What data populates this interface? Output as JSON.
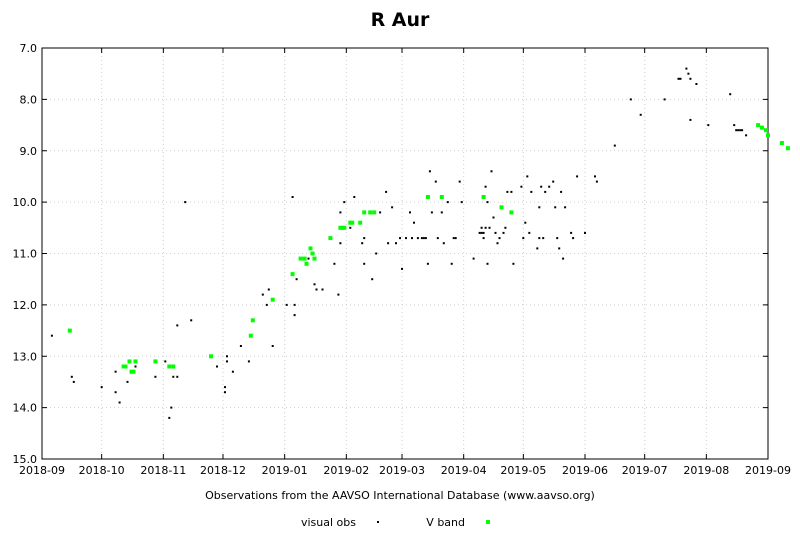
{
  "chart_data": {
    "type": "scatter",
    "title": "R Aur",
    "xlabel": "Observations from the AAVSO International Database (www.aavso.org)",
    "ylabel": "",
    "x_ticks": [
      "2018-09",
      "2018-10",
      "2018-11",
      "2018-12",
      "2019-01",
      "2019-02",
      "2019-03",
      "2019-04",
      "2019-05",
      "2019-06",
      "2019-07",
      "2019-08",
      "2019-09"
    ],
    "y_ticks": [
      "7.0",
      "8.0",
      "9.0",
      "10.0",
      "11.0",
      "12.0",
      "13.0",
      "14.0",
      "15.0"
    ],
    "ylim": [
      15.0,
      7.0
    ],
    "y_reversed": true,
    "grid": true,
    "legend_position": "bottom",
    "series": [
      {
        "name": "visual obs",
        "color": "#000000",
        "points": [
          [
            "2018-09-06",
            12.6
          ],
          [
            "2018-09-16",
            13.4
          ],
          [
            "2018-09-17",
            13.5
          ],
          [
            "2018-10-01",
            13.6
          ],
          [
            "2018-10-08",
            13.3
          ],
          [
            "2018-10-08",
            13.7
          ],
          [
            "2018-10-10",
            13.9
          ],
          [
            "2018-10-13",
            13.2
          ],
          [
            "2018-10-14",
            13.5
          ],
          [
            "2018-10-16",
            13.3
          ],
          [
            "2018-10-18",
            13.2
          ],
          [
            "2018-10-28",
            13.4
          ],
          [
            "2018-11-02",
            13.1
          ],
          [
            "2018-11-04",
            14.2
          ],
          [
            "2018-11-05",
            14.0
          ],
          [
            "2018-11-06",
            13.4
          ],
          [
            "2018-11-08",
            12.4
          ],
          [
            "2018-11-08",
            13.4
          ],
          [
            "2018-11-12",
            10.0
          ],
          [
            "2018-11-15",
            12.3
          ],
          [
            "2018-11-28",
            13.2
          ],
          [
            "2018-12-02",
            13.6
          ],
          [
            "2018-12-02",
            13.7
          ],
          [
            "2018-12-03",
            13.1
          ],
          [
            "2018-12-03",
            13.0
          ],
          [
            "2018-12-06",
            13.3
          ],
          [
            "2018-12-10",
            12.8
          ],
          [
            "2018-12-14",
            13.1
          ],
          [
            "2018-12-21",
            11.8
          ],
          [
            "2018-12-23",
            12.0
          ],
          [
            "2018-12-24",
            11.7
          ],
          [
            "2018-12-26",
            12.8
          ],
          [
            "2019-01-02",
            12.0
          ],
          [
            "2019-01-05",
            9.9
          ],
          [
            "2019-01-06",
            12.0
          ],
          [
            "2019-01-06",
            12.2
          ],
          [
            "2019-01-07",
            11.5
          ],
          [
            "2019-01-13",
            11.1
          ],
          [
            "2019-01-16",
            11.6
          ],
          [
            "2019-01-17",
            11.7
          ],
          [
            "2019-01-20",
            11.7
          ],
          [
            "2019-01-26",
            11.2
          ],
          [
            "2019-01-28",
            11.8
          ],
          [
            "2019-01-29",
            10.2
          ],
          [
            "2019-01-29",
            10.8
          ],
          [
            "2019-01-31",
            10.0
          ],
          [
            "2019-02-03",
            10.5
          ],
          [
            "2019-02-05",
            9.9
          ],
          [
            "2019-02-09",
            10.8
          ],
          [
            "2019-02-10",
            10.7
          ],
          [
            "2019-02-10",
            11.2
          ],
          [
            "2019-02-14",
            11.5
          ],
          [
            "2019-02-16",
            11.0
          ],
          [
            "2019-02-18",
            10.2
          ],
          [
            "2019-02-21",
            9.8
          ],
          [
            "2019-02-22",
            10.8
          ],
          [
            "2019-02-24",
            10.1
          ],
          [
            "2019-02-26",
            10.8
          ],
          [
            "2019-02-28",
            10.7
          ],
          [
            "2019-03-01",
            11.3
          ],
          [
            "2019-03-03",
            10.7
          ],
          [
            "2019-03-05",
            10.2
          ],
          [
            "2019-03-06",
            10.7
          ],
          [
            "2019-03-07",
            10.4
          ],
          [
            "2019-03-09",
            10.7
          ],
          [
            "2019-03-11",
            10.7
          ],
          [
            "2019-03-12",
            10.7
          ],
          [
            "2019-03-13",
            10.7
          ],
          [
            "2019-03-14",
            11.2
          ],
          [
            "2019-03-15",
            9.4
          ],
          [
            "2019-03-16",
            10.2
          ],
          [
            "2019-03-18",
            9.6
          ],
          [
            "2019-03-19",
            10.7
          ],
          [
            "2019-03-21",
            10.2
          ],
          [
            "2019-03-22",
            10.8
          ],
          [
            "2019-03-24",
            10.0
          ],
          [
            "2019-03-26",
            11.2
          ],
          [
            "2019-03-27",
            10.7
          ],
          [
            "2019-03-28",
            10.7
          ],
          [
            "2019-03-30",
            9.6
          ],
          [
            "2019-03-31",
            10.0
          ],
          [
            "2019-04-06",
            11.1
          ],
          [
            "2019-04-09",
            10.6
          ],
          [
            "2019-04-10",
            10.5
          ],
          [
            "2019-04-10",
            10.6
          ],
          [
            "2019-04-11",
            10.6
          ],
          [
            "2019-04-11",
            10.7
          ],
          [
            "2019-04-12",
            10.5
          ],
          [
            "2019-04-12",
            9.7
          ],
          [
            "2019-04-13",
            11.2
          ],
          [
            "2019-04-13",
            10.0
          ],
          [
            "2019-04-14",
            10.5
          ],
          [
            "2019-04-15",
            9.4
          ],
          [
            "2019-04-16",
            10.3
          ],
          [
            "2019-04-17",
            10.6
          ],
          [
            "2019-04-18",
            10.8
          ],
          [
            "2019-04-19",
            10.7
          ],
          [
            "2019-04-21",
            10.6
          ],
          [
            "2019-04-22",
            10.5
          ],
          [
            "2019-04-23",
            9.8
          ],
          [
            "2019-04-25",
            9.8
          ],
          [
            "2019-04-26",
            11.2
          ],
          [
            "2019-04-30",
            9.7
          ],
          [
            "2019-05-01",
            10.7
          ],
          [
            "2019-05-02",
            10.4
          ],
          [
            "2019-05-03",
            9.5
          ],
          [
            "2019-05-04",
            10.6
          ],
          [
            "2019-05-05",
            9.8
          ],
          [
            "2019-05-08",
            10.9
          ],
          [
            "2019-05-09",
            10.1
          ],
          [
            "2019-05-09",
            10.7
          ],
          [
            "2019-05-10",
            9.7
          ],
          [
            "2019-05-11",
            10.7
          ],
          [
            "2019-05-12",
            9.8
          ],
          [
            "2019-05-14",
            9.7
          ],
          [
            "2019-05-16",
            9.6
          ],
          [
            "2019-05-17",
            10.1
          ],
          [
            "2019-05-18",
            10.7
          ],
          [
            "2019-05-19",
            10.9
          ],
          [
            "2019-05-20",
            9.8
          ],
          [
            "2019-05-21",
            11.1
          ],
          [
            "2019-05-22",
            10.1
          ],
          [
            "2019-05-25",
            10.6
          ],
          [
            "2019-05-26",
            10.7
          ],
          [
            "2019-05-28",
            9.5
          ],
          [
            "2019-06-01",
            10.6
          ],
          [
            "2019-06-01",
            10.6
          ],
          [
            "2019-06-06",
            9.5
          ],
          [
            "2019-06-07",
            9.6
          ],
          [
            "2019-06-16",
            8.9
          ],
          [
            "2019-06-24",
            8.0
          ],
          [
            "2019-06-29",
            8.3
          ],
          [
            "2019-07-11",
            8.0
          ],
          [
            "2019-07-18",
            7.6
          ],
          [
            "2019-07-19",
            7.6
          ],
          [
            "2019-07-22",
            7.4
          ],
          [
            "2019-07-23",
            7.5
          ],
          [
            "2019-07-24",
            7.6
          ],
          [
            "2019-07-24",
            8.4
          ],
          [
            "2019-07-27",
            7.7
          ],
          [
            "2019-08-02",
            8.5
          ],
          [
            "2019-08-13",
            7.9
          ],
          [
            "2019-08-15",
            8.5
          ],
          [
            "2019-08-16",
            8.6
          ],
          [
            "2019-08-17",
            8.6
          ],
          [
            "2019-08-18",
            8.6
          ],
          [
            "2019-08-19",
            8.6
          ],
          [
            "2019-08-21",
            8.7
          ]
        ]
      },
      {
        "name": "V band",
        "color": "#00ff00",
        "points": [
          [
            "2018-09-15",
            12.5
          ],
          [
            "2018-10-12",
            13.2
          ],
          [
            "2018-10-13",
            13.2
          ],
          [
            "2018-10-15",
            13.1
          ],
          [
            "2018-10-16",
            13.3
          ],
          [
            "2018-10-17",
            13.3
          ],
          [
            "2018-10-18",
            13.1
          ],
          [
            "2018-10-28",
            13.1
          ],
          [
            "2018-11-04",
            13.2
          ],
          [
            "2018-11-06",
            13.2
          ],
          [
            "2018-11-25",
            13.0
          ],
          [
            "2018-12-15",
            12.6
          ],
          [
            "2018-12-16",
            12.3
          ],
          [
            "2018-12-26",
            11.9
          ],
          [
            "2019-01-05",
            11.4
          ],
          [
            "2019-01-09",
            11.1
          ],
          [
            "2019-01-11",
            11.1
          ],
          [
            "2019-01-12",
            11.2
          ],
          [
            "2019-01-14",
            10.9
          ],
          [
            "2019-01-15",
            11.0
          ],
          [
            "2019-01-16",
            11.1
          ],
          [
            "2019-01-24",
            10.7
          ],
          [
            "2019-01-29",
            10.5
          ],
          [
            "2019-01-30",
            10.5
          ],
          [
            "2019-01-31",
            10.5
          ],
          [
            "2019-02-03",
            10.4
          ],
          [
            "2019-02-04",
            10.4
          ],
          [
            "2019-02-08",
            10.4
          ],
          [
            "2019-02-10",
            10.2
          ],
          [
            "2019-02-13",
            10.2
          ],
          [
            "2019-02-15",
            10.2
          ],
          [
            "2019-03-14",
            9.9
          ],
          [
            "2019-03-21",
            9.9
          ],
          [
            "2019-04-11",
            9.9
          ],
          [
            "2019-04-20",
            10.1
          ],
          [
            "2019-04-25",
            10.2
          ],
          [
            "2019-08-27",
            8.5
          ],
          [
            "2019-08-29",
            8.55
          ],
          [
            "2019-08-31",
            8.6
          ],
          [
            "2019-09-01",
            8.7
          ],
          [
            "2019-09-08",
            8.85
          ],
          [
            "2019-09-11",
            8.95
          ]
        ]
      }
    ]
  }
}
